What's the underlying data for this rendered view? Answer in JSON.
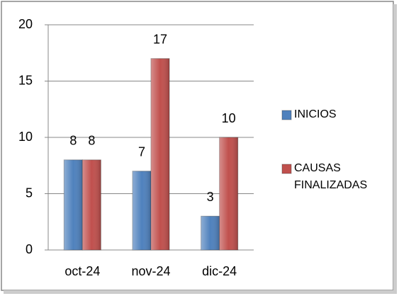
{
  "chart_data": {
    "type": "bar",
    "categories": [
      "oct-24",
      "nov-24",
      "dic-24"
    ],
    "series": [
      {
        "name": "INICIOS",
        "color": "#4f81bd",
        "values": [
          8,
          7,
          3
        ]
      },
      {
        "name": "CAUSAS FINALIZADAS",
        "color": "#c0504d",
        "values": [
          8,
          17,
          10
        ]
      }
    ],
    "ylim": [
      0,
      20
    ],
    "yticks": [
      0,
      5,
      10,
      15,
      20
    ],
    "grid": true,
    "legend": "right"
  }
}
